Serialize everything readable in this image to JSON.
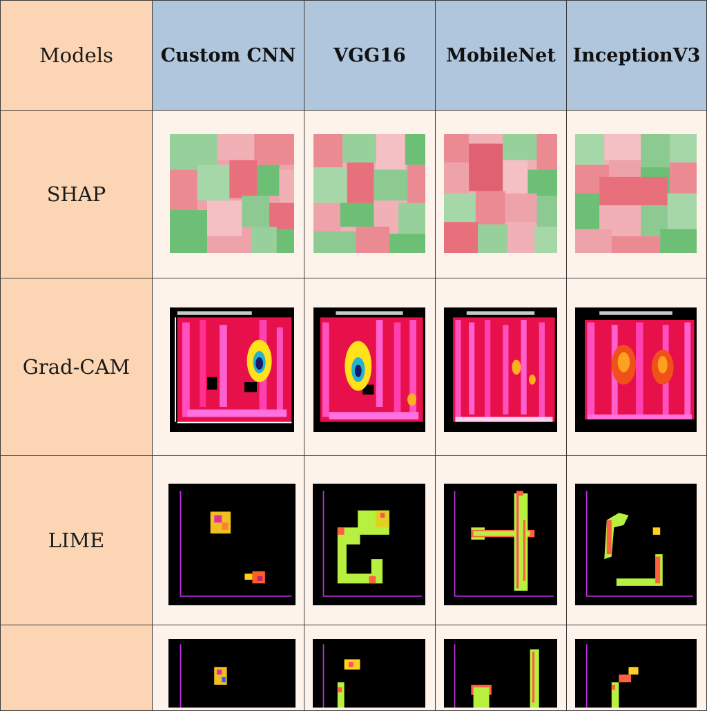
{
  "table": {
    "corner_label": "Models",
    "models": [
      "Custom CNN",
      "VGG16",
      "MobileNet",
      "InceptionV3"
    ],
    "methods": [
      "SHAP",
      "Grad-CAM",
      "LIME",
      ""
    ]
  },
  "colors": {
    "row_header_bg": "#fcd6b4",
    "column_header_bg": "#b0c6dd",
    "cell_bg": "#fdf3ea",
    "shap_positive": "#e8707c",
    "shap_negative": "#6cbf74",
    "gradcam_base": "#f01040",
    "lime_highlight": "#b8f040",
    "plot_background": "#000000"
  }
}
